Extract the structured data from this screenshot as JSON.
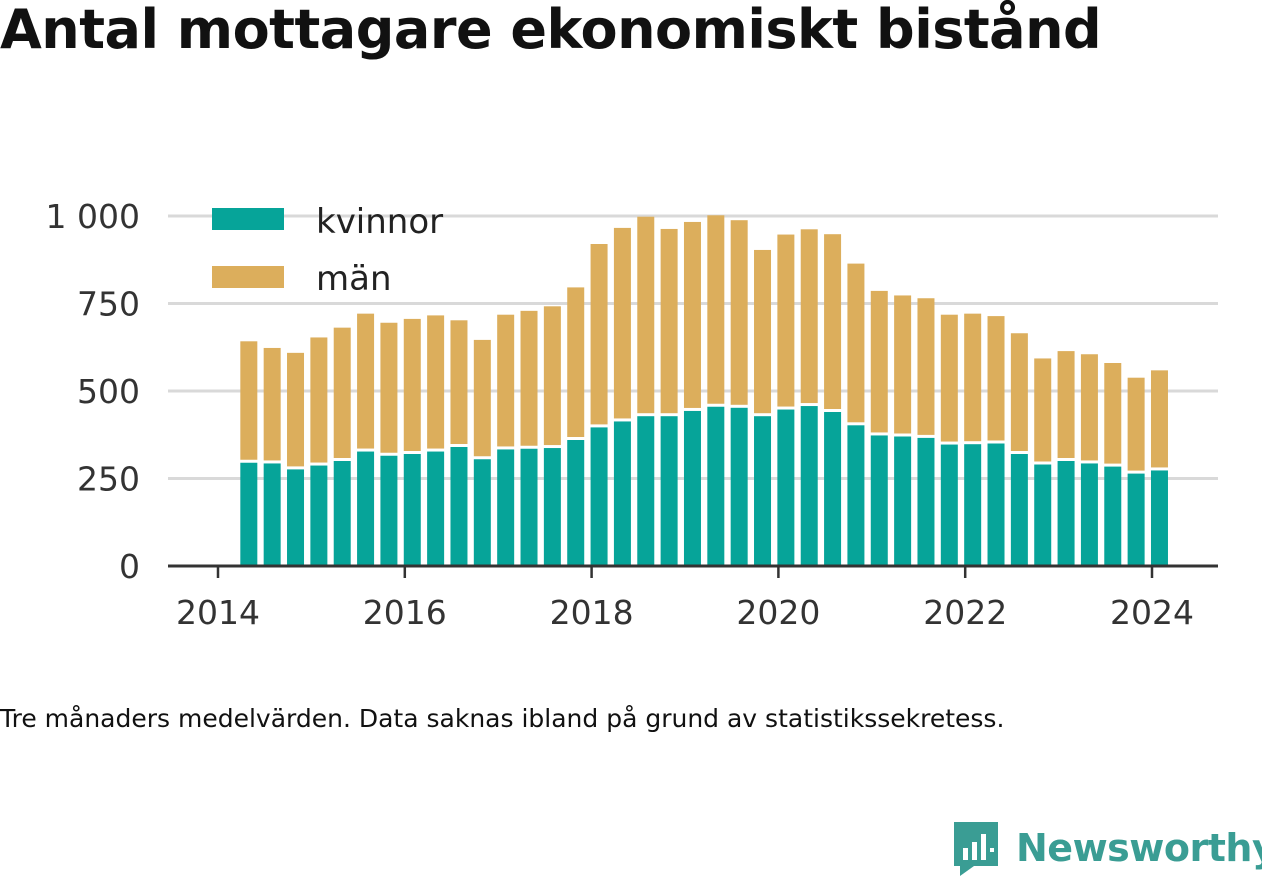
{
  "title": "Antal mottagare ekonomiskt bistånd",
  "note": "Tre månaders medelvärden. Data saknas ibland på grund av statistikssekretess.",
  "brand": {
    "name": "Newsworthy",
    "icon": "newsworthy-logo-icon",
    "color": "#3a9d94"
  },
  "colors": {
    "kvinnor": "#06a499",
    "man": "#dcae5c",
    "grid": "#d9d9d9",
    "axis": "#333333"
  },
  "chart_data": {
    "type": "bar",
    "stacked": true,
    "legend_position": "top-left",
    "grid": true,
    "ylim": [
      0,
      1000
    ],
    "yticks": [
      0,
      250,
      500,
      750,
      1000
    ],
    "ytick_labels": [
      "0",
      "250",
      "500",
      "750",
      "1 000"
    ],
    "xlim": [
      2014,
      2024.25
    ],
    "xticks": [
      2014,
      2016,
      2018,
      2020,
      2022,
      2024
    ],
    "xtick_labels": [
      "2014",
      "2016",
      "2018",
      "2020",
      "2022",
      "2024"
    ],
    "x": [
      2014.33,
      2014.58,
      2014.83,
      2015.08,
      2015.33,
      2015.58,
      2015.83,
      2016.08,
      2016.33,
      2016.58,
      2016.83,
      2017.08,
      2017.33,
      2017.58,
      2017.83,
      2018.08,
      2018.33,
      2018.58,
      2018.83,
      2019.08,
      2019.33,
      2019.58,
      2019.83,
      2020.08,
      2020.33,
      2020.58,
      2020.83,
      2021.08,
      2021.33,
      2021.58,
      2021.83,
      2022.08,
      2022.33,
      2022.58,
      2022.83,
      2023.08,
      2023.33,
      2023.58,
      2023.83,
      2024.08
    ],
    "series": [
      {
        "name": "kvinnor",
        "values": [
          295,
          293,
          276,
          287,
          300,
          327,
          315,
          320,
          327,
          340,
          305,
          333,
          335,
          337,
          360,
          396,
          413,
          428,
          428,
          443,
          455,
          452,
          428,
          447,
          457,
          440,
          402,
          373,
          370,
          366,
          347,
          348,
          350,
          320,
          290,
          300,
          293,
          284,
          264,
          273
        ]
      },
      {
        "name": "män",
        "values": [
          347,
          330,
          333,
          366,
          381,
          394,
          380,
          386,
          389,
          362,
          341,
          385,
          394,
          405,
          436,
          524,
          553,
          570,
          535,
          540,
          547,
          536,
          475,
          500,
          505,
          508,
          462,
          413,
          403,
          399,
          371,
          373,
          364,
          345,
          303,
          314,
          312,
          296,
          274,
          286
        ]
      }
    ]
  }
}
